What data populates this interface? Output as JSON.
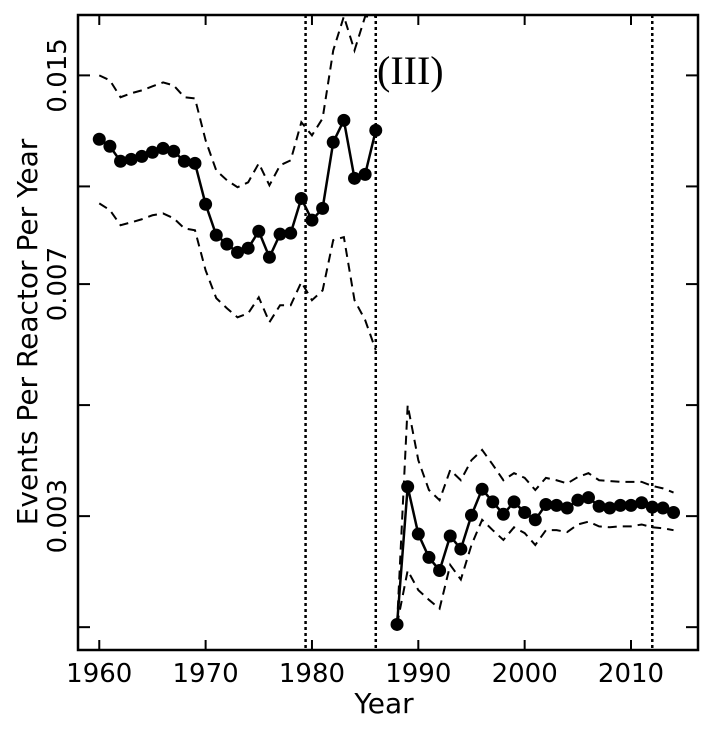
{
  "chart_data": {
    "type": "line",
    "xlabel": "Year",
    "ylabel": "Events Per Reactor Per Year",
    "annotation": "(III)",
    "x": [
      1960,
      1961,
      1962,
      1963,
      1964,
      1965,
      1966,
      1967,
      1968,
      1969,
      1970,
      1971,
      1972,
      1973,
      1974,
      1975,
      1976,
      1977,
      1978,
      1979,
      1980,
      1981,
      1982,
      1983,
      1984,
      1985,
      1986,
      1987,
      1988,
      1989,
      1990,
      1991,
      1992,
      1993,
      1994,
      1995,
      1996,
      1997,
      1998,
      1999,
      2000,
      2001,
      2002,
      2003,
      2004,
      2005,
      2006,
      2007,
      2008,
      2009,
      2010,
      2011,
      2012,
      2013,
      2014
    ],
    "series": [
      {
        "color": "#000000",
        "style": "solid",
        "markers": true,
        "values": [
          0.01188,
          0.01158,
          0.01096,
          0.01104,
          0.01116,
          0.01133,
          0.01149,
          0.01137,
          0.01096,
          0.01088,
          0.00937,
          0.00837,
          0.0081,
          0.00786,
          0.00798,
          0.00849,
          0.00772,
          0.0084,
          0.00843,
          0.00957,
          0.00884,
          0.00923,
          0.01175,
          0.01273,
          0.0103,
          0.01045,
          0.01227,
          null,
          0.00202,
          0.00334,
          0.00281,
          0.00258,
          0.00246,
          0.00279,
          0.00266,
          0.00301,
          0.00331,
          0.00316,
          0.00302,
          0.00316,
          0.00304,
          0.00296,
          0.00313,
          0.00312,
          0.00309,
          0.00318,
          0.00321,
          0.00311,
          0.00309,
          0.00312,
          0.00312,
          0.00315,
          0.0031,
          0.00309,
          0.00304
        ]
      },
      {
        "color": "#000000",
        "style": "dashed",
        "markers": false,
        "values": [
          0.015,
          0.01473,
          0.01385,
          0.01405,
          0.0142,
          0.01441,
          0.01462,
          0.01446,
          0.01385,
          0.01379,
          0.01183,
          0.0106,
          0.01023,
          0.00997,
          0.01015,
          0.01088,
          0.01004,
          0.0108,
          0.011,
          0.01264,
          0.01205,
          0.01282,
          0.01643,
          0.0186,
          0.01643,
          0.0186,
          0.0186,
          null,
          0.00202,
          0.0045,
          0.00368,
          0.0033,
          0.00318,
          0.00355,
          0.00342,
          0.00368,
          0.00382,
          0.00362,
          0.00342,
          0.00351,
          0.00345,
          0.0033,
          0.00345,
          0.00342,
          0.00338,
          0.00346,
          0.00351,
          0.00342,
          0.00341,
          0.0034,
          0.0034,
          0.0034,
          0.00335,
          0.00332,
          0.00327
        ]
      },
      {
        "color": "#000000",
        "style": "dashed",
        "markers": false,
        "values": [
          0.0094,
          0.00917,
          0.00868,
          0.00877,
          0.00887,
          0.009,
          0.00906,
          0.0089,
          0.00858,
          0.00852,
          0.00736,
          0.00665,
          0.00641,
          0.0062,
          0.00629,
          0.00667,
          0.00609,
          0.00648,
          0.00648,
          0.00705,
          0.0066,
          0.00684,
          0.00822,
          0.00831,
          0.0066,
          0.00614,
          0.0055,
          null,
          0.00202,
          0.00246,
          0.00229,
          0.00221,
          0.00214,
          0.00251,
          0.00238,
          0.0027,
          0.00296,
          0.00285,
          0.00275,
          0.00288,
          0.00282,
          0.0027,
          0.00285,
          0.00285,
          0.00283,
          0.00291,
          0.00294,
          0.00289,
          0.00288,
          0.00289,
          0.00289,
          0.00291,
          0.00288,
          0.00287,
          0.00285
        ]
      }
    ],
    "vlines": [
      1979.4,
      1986,
      2012
    ],
    "xlim": [
      1958,
      2016.3
    ],
    "xticks": [
      1960,
      1970,
      1980,
      1990,
      2000,
      2010
    ],
    "ylim": [
      0.00184,
      0.0187
    ],
    "ylog": true,
    "yticks": [
      0.003,
      0.007,
      0.015
    ],
    "minor_yticks": [
      0.002,
      0.0045,
      0.01
    ],
    "grid": false
  }
}
